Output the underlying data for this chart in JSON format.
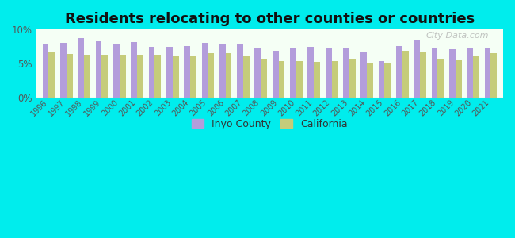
{
  "title": "Residents relocating to other counties or countries",
  "years": [
    1996,
    1997,
    1998,
    1999,
    2000,
    2001,
    2002,
    2003,
    2004,
    2005,
    2006,
    2007,
    2008,
    2009,
    2010,
    2011,
    2012,
    2013,
    2014,
    2015,
    2016,
    2017,
    2018,
    2019,
    2020,
    2021
  ],
  "inyo": [
    7.8,
    8.0,
    8.8,
    8.3,
    7.9,
    8.2,
    7.5,
    7.5,
    7.6,
    8.0,
    7.8,
    7.9,
    7.3,
    6.9,
    7.2,
    7.5,
    7.4,
    7.4,
    6.6,
    5.4,
    7.6,
    8.4,
    7.2,
    7.1,
    7.4,
    7.2
  ],
  "california": [
    6.7,
    6.4,
    6.3,
    6.3,
    6.3,
    6.3,
    6.3,
    6.2,
    6.2,
    6.5,
    6.5,
    6.0,
    5.7,
    5.4,
    5.3,
    5.2,
    5.4,
    5.6,
    5.0,
    5.1,
    6.9,
    6.8,
    5.7,
    5.5,
    6.1,
    6.5
  ],
  "inyo_color": "#b39ddb",
  "california_color": "#c5cc7a",
  "background_color": "#00eded",
  "plot_bg_top": "#f5fff5",
  "plot_bg_bottom": "#d8f0e8",
  "ylim": [
    0,
    10
  ],
  "yticks": [
    0,
    5,
    10
  ],
  "ytick_labels": [
    "0%",
    "5%",
    "10%"
  ],
  "bar_width": 0.35,
  "title_fontsize": 13,
  "legend_labels": [
    "Inyo County",
    "California"
  ],
  "watermark": "City-Data.com",
  "figsize": [
    6.5,
    3.0
  ],
  "dpi": 100
}
